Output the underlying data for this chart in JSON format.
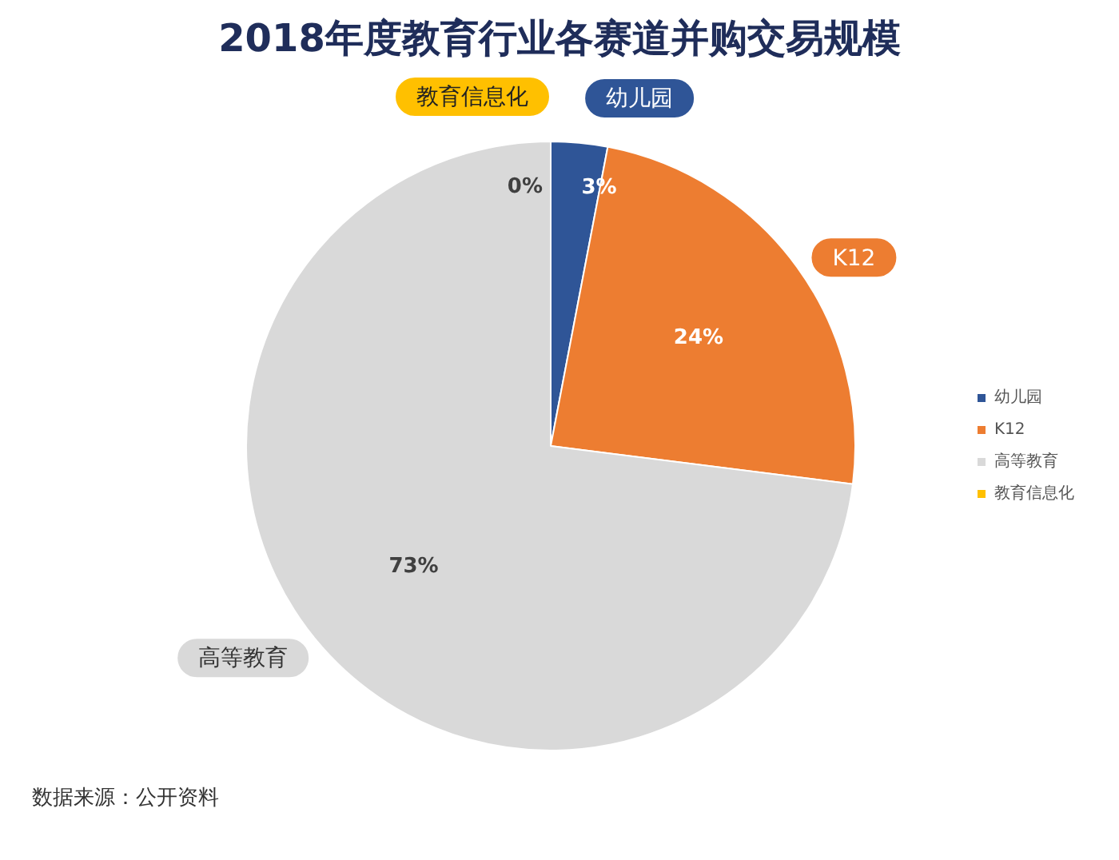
{
  "chart_data": {
    "type": "pie",
    "title": "2018年度教育行业各赛道并购交易规模",
    "categories": [
      "幼儿园",
      "K12",
      "高等教育",
      "教育信息化"
    ],
    "values": [
      3,
      24,
      73,
      0
    ],
    "value_labels": [
      "3%",
      "24%",
      "73%",
      "0%"
    ],
    "colors": [
      "#2f5597",
      "#ed7d31",
      "#d9d9d9",
      "#ffc000"
    ],
    "legend": "right",
    "annotations": [
      "数据来源：公开资料"
    ]
  }
}
